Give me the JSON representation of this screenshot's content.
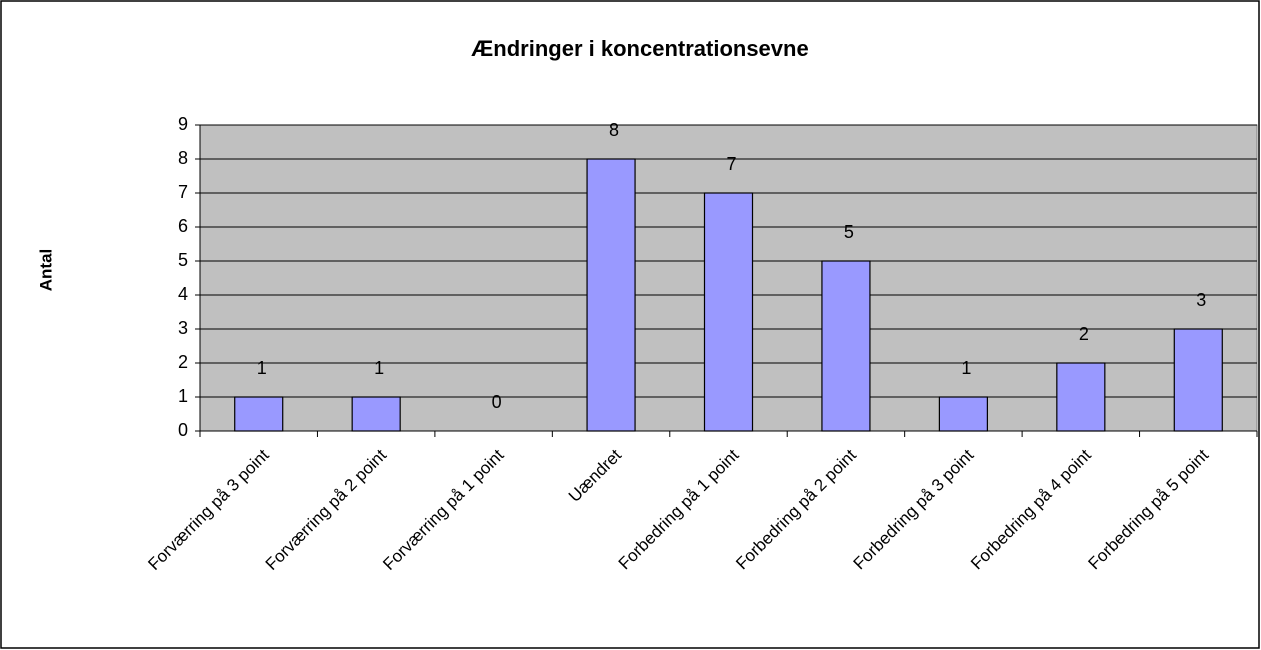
{
  "chart_data": {
    "type": "bar",
    "title": "Ændringer i koncentrationsevne",
    "y_label": "Antal",
    "categories": [
      "Forværring på 3 point",
      "Forværring på 2 point",
      "Forværring på 1 point",
      "Uændret",
      "Forbedring på 1 point",
      "Forbedring på 2 point",
      "Forbedring på 3 point",
      "Forbedring på 4 point",
      "Forbedring på 5 point"
    ],
    "values": [
      1,
      1,
      0,
      8,
      7,
      5,
      1,
      2,
      3
    ],
    "color": "#9999ff",
    "plot_background": "#c0c0c0",
    "ylim": [
      0,
      9
    ],
    "yticks": [
      0,
      1,
      2,
      3,
      4,
      5,
      6,
      7,
      8,
      9
    ],
    "grid": true
  }
}
